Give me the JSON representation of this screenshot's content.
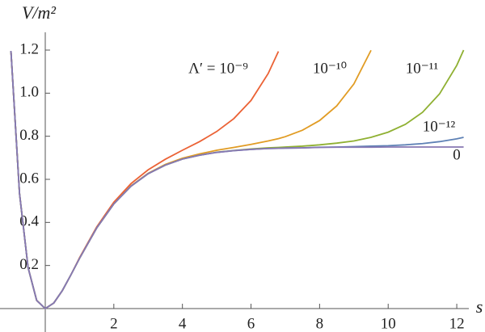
{
  "chart_data": {
    "type": "line",
    "y_label": "V/m²",
    "x_label": "s",
    "x": [
      -1,
      -0.75,
      -0.5,
      -0.25,
      0,
      0.25,
      0.5,
      0.75,
      1,
      1.5,
      2,
      2.5,
      3,
      3.5,
      4,
      4.5,
      5,
      5.5,
      6,
      6.5,
      6.8,
      7,
      7.5,
      8,
      8.5,
      9,
      9.5,
      10,
      10.5,
      11,
      11.5,
      12,
      12.2
    ],
    "series": [
      {
        "name": "Λ′ = 10⁻⁹",
        "color": "#EB6235",
        "values": [
          1.196,
          0.534,
          0.19,
          0.038,
          0,
          0.026,
          0.084,
          0.157,
          0.236,
          0.379,
          0.494,
          0.58,
          0.644,
          0.693,
          0.735,
          0.775,
          0.822,
          0.882,
          0.966,
          1.091,
          1.194,
          null,
          null,
          null,
          null,
          null,
          null,
          null,
          null,
          null,
          null,
          null,
          null
        ]
      },
      {
        "name": "10⁻¹⁰",
        "color": "#E19C24",
        "values": [
          1.196,
          0.534,
          0.19,
          0.038,
          0,
          0.026,
          0.084,
          0.157,
          0.233,
          0.374,
          0.486,
          0.57,
          0.628,
          0.669,
          0.698,
          0.718,
          0.735,
          0.748,
          0.762,
          0.778,
          0.789,
          0.798,
          0.828,
          0.873,
          0.941,
          1.043,
          1.199,
          null,
          null,
          null,
          null,
          null,
          null
        ]
      },
      {
        "name": "10⁻¹¹",
        "color": "#8FB032",
        "values": [
          1.196,
          0.534,
          0.19,
          0.038,
          0,
          0.026,
          0.084,
          0.157,
          0.233,
          0.374,
          0.486,
          0.568,
          0.626,
          0.666,
          0.694,
          0.712,
          0.726,
          0.734,
          0.741,
          0.746,
          0.748,
          0.75,
          0.754,
          0.76,
          0.768,
          0.778,
          0.795,
          0.819,
          0.855,
          0.911,
          0.997,
          1.129,
          1.2
        ]
      },
      {
        "name": "10⁻¹²",
        "color": "#5E81B5",
        "values": [
          1.196,
          0.534,
          0.19,
          0.038,
          0,
          0.026,
          0.084,
          0.157,
          0.233,
          0.374,
          0.486,
          0.568,
          0.626,
          0.666,
          0.694,
          0.712,
          0.725,
          0.733,
          0.739,
          0.743,
          0.744,
          0.745,
          0.746,
          0.749,
          0.75,
          0.752,
          0.754,
          0.756,
          0.76,
          0.766,
          0.775,
          0.788,
          0.795
        ]
      },
      {
        "name": "0",
        "color": "#8778B3",
        "values": [
          1.196,
          0.534,
          0.19,
          0.038,
          0,
          0.026,
          0.084,
          0.157,
          0.233,
          0.374,
          0.486,
          0.568,
          0.626,
          0.666,
          0.694,
          0.712,
          0.725,
          0.733,
          0.739,
          0.743,
          0.744,
          0.745,
          0.746,
          0.748,
          0.749,
          0.749,
          0.749,
          0.75,
          0.75,
          0.75,
          0.75,
          0.75,
          0.75
        ]
      }
    ],
    "xlim": [
      -1.1,
      12.3
    ],
    "ylim": [
      0,
      1.2
    ],
    "xticks": [
      2,
      4,
      6,
      8,
      10,
      12
    ],
    "yticks": [
      0.2,
      0.4,
      0.6,
      0.8,
      {
        "value": 1.0,
        "label": "1.0"
      },
      1.2
    ],
    "grid": false
  }
}
